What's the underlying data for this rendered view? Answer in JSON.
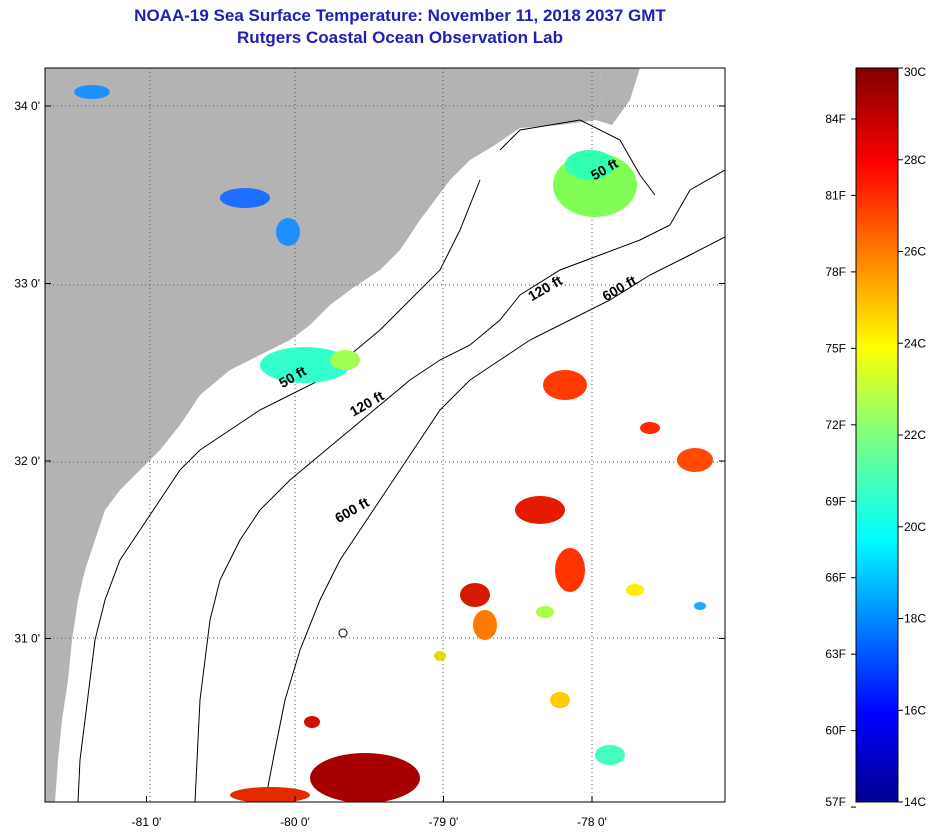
{
  "header": {
    "title": "NOAA-19 Sea Surface Temperature:  November 11, 2018 2037 GMT",
    "subtitle": "Rutgers Coastal Ocean Observation Lab"
  },
  "map": {
    "lon_ticks": [
      {
        "value": -81,
        "label": "-81 0'"
      },
      {
        "value": -80,
        "label": "-80 0'"
      },
      {
        "value": -79,
        "label": "-79 0'"
      },
      {
        "value": -78,
        "label": "-78 0'"
      }
    ],
    "lat_ticks": [
      {
        "value": 34,
        "label": "34 0'"
      },
      {
        "value": 33,
        "label": "33 0'"
      },
      {
        "value": 32,
        "label": "32 0'"
      },
      {
        "value": 31,
        "label": "31 0'"
      }
    ],
    "contour_labels": [
      {
        "text": "50 ft",
        "lon": -77.9,
        "lat": 33.62
      },
      {
        "text": "50 ft",
        "lon": -80.0,
        "lat": 32.45
      },
      {
        "text": "120 ft",
        "lon": -78.3,
        "lat": 32.95
      },
      {
        "text": "120 ft",
        "lon": -79.5,
        "lat": 32.3
      },
      {
        "text": "600 ft",
        "lon": -77.8,
        "lat": 32.95
      },
      {
        "text": "600 ft",
        "lon": -79.6,
        "lat": 31.7
      }
    ]
  },
  "colorbar": {
    "celsius_labels": [
      "30C",
      "28C",
      "26C",
      "24C",
      "22C",
      "20C",
      "18C",
      "16C",
      "14C"
    ],
    "fahrenheit_labels": [
      "84F",
      "81F",
      "78F",
      "75F",
      "72F",
      "69F",
      "66F",
      "63F",
      "60F",
      "57F"
    ],
    "celsius_min": 14,
    "celsius_max": 30,
    "fahrenheit_values": [
      84,
      81,
      78,
      75,
      72,
      69,
      66,
      63,
      60,
      57
    ]
  },
  "colors": {
    "land": "#b3b3b3",
    "ocean": "#ffffff",
    "title": "#1f1fb4",
    "grid": "#555555"
  }
}
